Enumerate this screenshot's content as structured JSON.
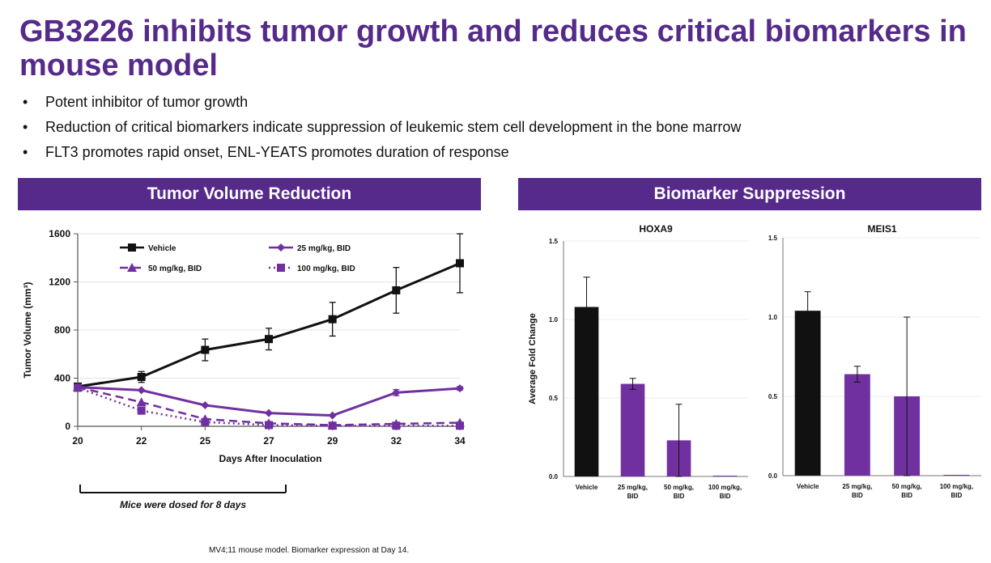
{
  "slide": {
    "title": "GB3226 inhibits tumor growth and reduces critical biomarkers in mouse model",
    "bullets": [
      "Potent inhibitor of tumor growth",
      "Reduction of critical biomarkers indicate suppression of leukemic stem cell development in the bone marrow",
      "FLT3 promotes rapid onset, ENL-YEATS promotes duration of response"
    ],
    "bullet_char": "•",
    "left_banner": "Tumor Volume Reduction",
    "right_banner": "Biomarker Suppression",
    "footnote": "MV4;11 mouse model. Biomarker expression at Day 14.",
    "dosing_note": "Mice were dosed for 8 days",
    "colors": {
      "purple": "#562a8a",
      "series_purple": "#7030a0",
      "black": "#111111"
    }
  },
  "chart_data": [
    {
      "type": "line",
      "title": "",
      "xlabel": "Days After Inoculation",
      "ylabel": "Tumor Volume (mm³)",
      "x": [
        20,
        22,
        25,
        27,
        29,
        32,
        34
      ],
      "xticks": [
        "20",
        "22",
        "25",
        "27",
        "29",
        "32",
        "34"
      ],
      "ylim": [
        0,
        1600
      ],
      "yticks": [
        "0",
        "400",
        "800",
        "1200",
        "1600"
      ],
      "grid": true,
      "legend_position": "top",
      "series": [
        {
          "name": "Vehicle",
          "style": "solid",
          "marker": "square",
          "color": "#111111",
          "x": [
            20,
            22,
            25,
            27,
            29,
            32,
            34
          ],
          "values": [
            330,
            410,
            635,
            725,
            890,
            1130,
            1355
          ],
          "errors": [
            0,
            45,
            90,
            90,
            140,
            190,
            245
          ]
        },
        {
          "name": "25 mg/kg, BID",
          "style": "solid",
          "marker": "diamond",
          "color": "#7030a0",
          "x": [
            20,
            22,
            25,
            27,
            29,
            32,
            34
          ],
          "values": [
            325,
            300,
            175,
            110,
            90,
            280,
            315
          ],
          "errors": [
            0,
            0,
            0,
            0,
            0,
            25,
            15
          ]
        },
        {
          "name": "50 mg/kg, BID",
          "style": "dashed",
          "marker": "triangle",
          "color": "#7030a0",
          "x": [
            20,
            22,
            25,
            27,
            29,
            32,
            34
          ],
          "values": [
            325,
            200,
            60,
            25,
            10,
            20,
            30
          ],
          "errors": [
            0,
            0,
            0,
            0,
            0,
            0,
            0
          ]
        },
        {
          "name": "100 mg/kg, BID",
          "style": "dotted",
          "marker": "square",
          "color": "#7030a0",
          "x": [
            20,
            22,
            25,
            27,
            29,
            32,
            34
          ],
          "values": [
            320,
            130,
            35,
            10,
            5,
            5,
            5
          ],
          "errors": [
            0,
            0,
            0,
            0,
            0,
            0,
            0
          ]
        }
      ]
    },
    {
      "type": "bar",
      "title": "HOXA9",
      "xlabel": "",
      "ylabel": "Average Fold Change",
      "categories": [
        "Vehicle",
        "25 mg/kg,\nBID",
        "50 mg/kg,\nBID",
        "100 mg/kg,\nBID"
      ],
      "values": [
        1.08,
        0.59,
        0.23,
        0.005
      ],
      "errors": [
        0.19,
        0.035,
        0.23,
        0
      ],
      "colors": [
        "#111111",
        "#7030a0",
        "#7030a0",
        "#7030a0"
      ],
      "ylim": [
        0,
        1.5
      ],
      "yticks": [
        "0.0",
        "0.5",
        "1.0",
        "1.5"
      ]
    },
    {
      "type": "bar",
      "title": "MEIS1",
      "xlabel": "",
      "ylabel": "",
      "categories": [
        "Vehicle",
        "25 mg/kg,\nBID",
        "50 mg/kg,\nBID",
        "100 mg/kg,\nBID"
      ],
      "values": [
        1.04,
        0.64,
        0.5,
        0.005
      ],
      "errors": [
        0.12,
        0.05,
        0.5,
        0
      ],
      "colors": [
        "#111111",
        "#7030a0",
        "#7030a0",
        "#7030a0"
      ],
      "ylim": [
        0,
        1.5
      ],
      "yticks": [
        "0.0",
        "0.5",
        "1.0",
        "1.5"
      ]
    }
  ]
}
